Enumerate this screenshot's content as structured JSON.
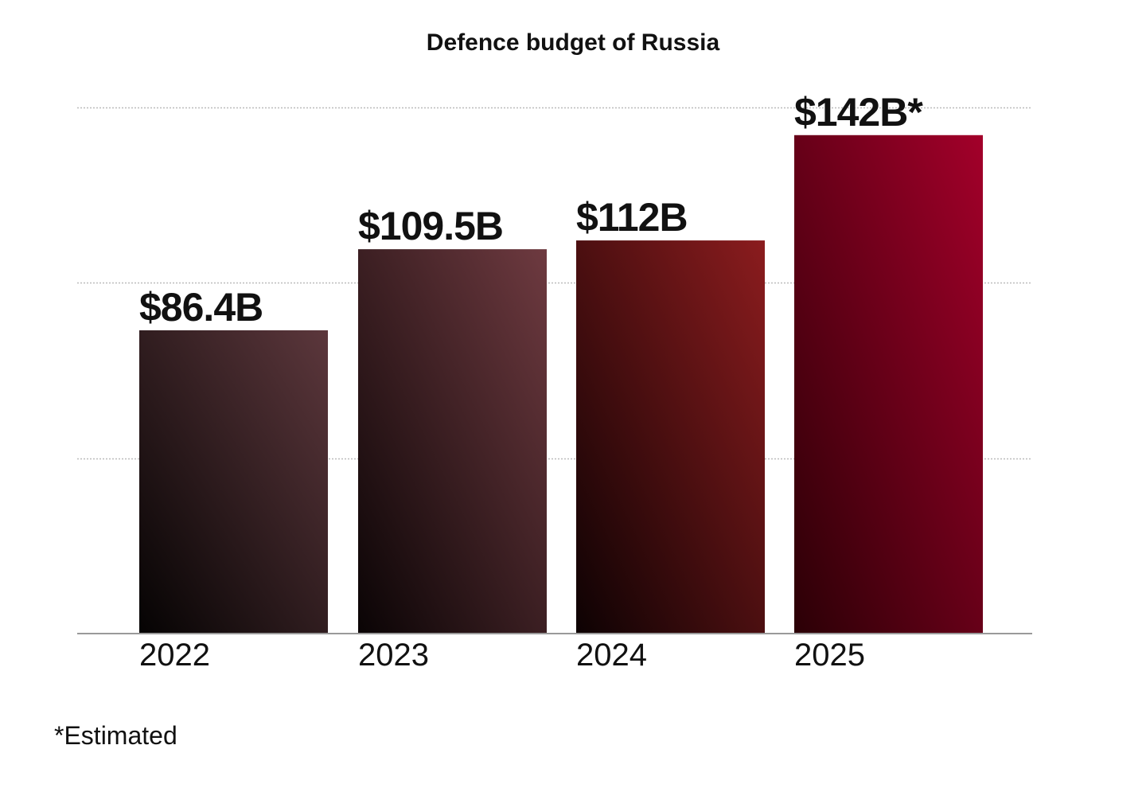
{
  "chart_data": {
    "type": "bar",
    "title": "Defence budget of Russia",
    "xlabel": "",
    "ylabel": "",
    "categories": [
      "2022",
      "2023",
      "2024",
      "2025"
    ],
    "values": [
      86.4,
      109.5,
      112,
      142
    ],
    "value_labels": [
      "$86.4B",
      "$109.5B",
      "$112B",
      "$142B*"
    ],
    "ylim": [
      0,
      150
    ],
    "grid_values": [
      50,
      100,
      150
    ],
    "grid": true,
    "legend": "none",
    "footnote": "*Estimated",
    "colors": {
      "bar_2022": [
        "#050303",
        "#5c373c"
      ],
      "bar_2023": [
        "#0a0405",
        "#6e3a40"
      ],
      "bar_2024": [
        "#0d0203",
        "#8b1c1e"
      ],
      "bar_2025": [
        "#2b0006",
        "#a3002a"
      ],
      "grid": "#bbbbbb",
      "axis": "#9a9a9a",
      "text": "#111111"
    }
  }
}
